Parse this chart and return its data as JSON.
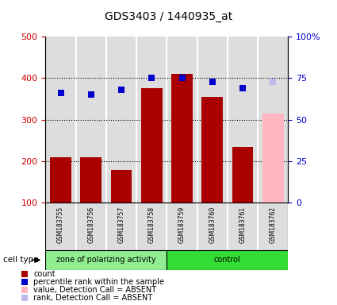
{
  "title": "GDS3403 / 1440935_at",
  "samples": [
    "GSM183755",
    "GSM183756",
    "GSM183757",
    "GSM183758",
    "GSM183759",
    "GSM183760",
    "GSM183761",
    "GSM183762"
  ],
  "bar_values": [
    210,
    210,
    180,
    375,
    410,
    355,
    235,
    315
  ],
  "bar_absent": [
    false,
    false,
    false,
    false,
    false,
    false,
    false,
    true
  ],
  "percentile_values": [
    66,
    65,
    68,
    75,
    75,
    73,
    69,
    73
  ],
  "percentile_absent": [
    false,
    false,
    false,
    false,
    false,
    false,
    false,
    true
  ],
  "bar_color": "#AA0000",
  "bar_absent_color": "#FFB6C1",
  "dot_color": "#0000CC",
  "dot_absent_color": "#BBBBEE",
  "ylim_left": [
    100,
    500
  ],
  "ylim_right": [
    0,
    100
  ],
  "yticks_left": [
    100,
    200,
    300,
    400,
    500
  ],
  "yticks_right": [
    0,
    25,
    50,
    75,
    100
  ],
  "ytick_labels_right": [
    "0",
    "25",
    "50",
    "75",
    "100%"
  ],
  "grid_dotted_at": [
    200,
    300,
    400
  ],
  "cell_groups": [
    {
      "label": "zone of polarizing activity",
      "count": 4,
      "color": "#90EE90"
    },
    {
      "label": "control",
      "count": 4,
      "color": "#33DD33"
    }
  ],
  "cell_type_label": "cell type",
  "legend_items": [
    {
      "color": "#AA0000",
      "label": "count",
      "marker": "s"
    },
    {
      "color": "#0000CC",
      "label": "percentile rank within the sample",
      "marker": "s"
    },
    {
      "color": "#FFB6C1",
      "label": "value, Detection Call = ABSENT",
      "marker": "s"
    },
    {
      "color": "#BBBBEE",
      "label": "rank, Detection Call = ABSENT",
      "marker": "s"
    }
  ],
  "background_color": "#FFFFFF",
  "tick_color_left": "#CC0000",
  "tick_color_right": "#0000CC",
  "plot_bg": "#FFFFFF",
  "col_bg": "#DDDDDD",
  "col_sep": "#FFFFFF"
}
